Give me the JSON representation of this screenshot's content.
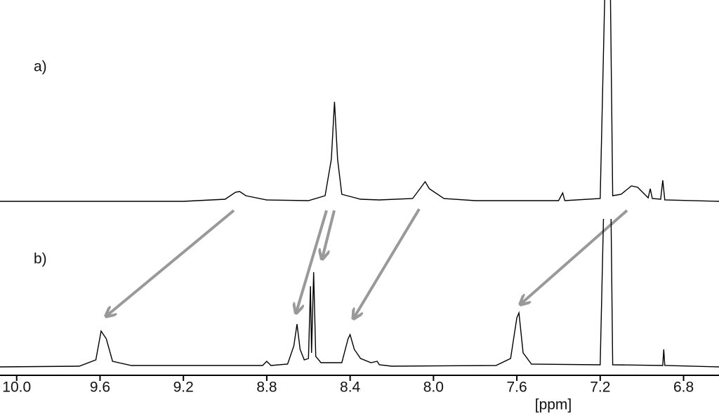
{
  "chart_data": {
    "type": "line",
    "xlabel": "[ppm]",
    "xlim": [
      10.08,
      6.63
    ],
    "ylim": [
      0,
      236
    ],
    "xticks": [
      {
        "value": 10.0,
        "label": "10.0"
      },
      9.6,
      9.2,
      8.8,
      8.4,
      {
        "value": 8.0,
        "label": "8.0"
      },
      7.6,
      7.2,
      6.8
    ],
    "series": [
      {
        "name": "a)",
        "color": "#000000",
        "x": [
          10.08,
          9.2,
          9.0,
          8.95,
          8.93,
          8.9,
          8.8,
          8.6,
          8.52,
          8.49,
          8.475,
          8.46,
          8.44,
          8.35,
          8.26,
          8.1,
          8.06,
          8.04,
          8.02,
          7.95,
          7.8,
          7.4,
          7.38,
          7.37,
          7.2,
          7.17,
          7.155,
          7.14,
          7.1,
          7.05,
          7.02,
          6.98,
          6.97,
          6.96,
          6.95,
          6.91,
          6.9,
          6.89,
          6.63
        ],
        "values": [
          0,
          0,
          3,
          13,
          14,
          8,
          2,
          1,
          8,
          60,
          142,
          60,
          10,
          3,
          2,
          4,
          20,
          28,
          18,
          4,
          1,
          1,
          12,
          1,
          4,
          400,
          400,
          8,
          10,
          22,
          20,
          8,
          5,
          18,
          4,
          3,
          30,
          2,
          0
        ]
      },
      {
        "name": "b)",
        "color": "#000000",
        "x": [
          10.08,
          9.7,
          9.62,
          9.595,
          9.57,
          9.54,
          9.45,
          8.82,
          8.8,
          8.78,
          8.7,
          8.67,
          8.655,
          8.64,
          8.62,
          8.6,
          8.59,
          8.585,
          8.575,
          8.565,
          8.54,
          8.44,
          8.41,
          8.4,
          8.38,
          8.35,
          8.3,
          8.27,
          8.26,
          8.2,
          7.7,
          7.63,
          7.6,
          7.59,
          7.57,
          7.53,
          7.2,
          7.17,
          7.155,
          7.14,
          6.9,
          6.895,
          6.89,
          6.63
        ],
        "values": [
          0,
          1,
          10,
          51,
          40,
          8,
          2,
          2,
          8,
          2,
          4,
          30,
          61,
          25,
          10,
          12,
          115,
          20,
          135,
          15,
          6,
          6,
          40,
          46,
          25,
          12,
          6,
          8,
          3,
          1,
          2,
          12,
          70,
          77,
          20,
          4,
          3,
          400,
          400,
          3,
          2,
          25,
          2,
          0
        ]
      }
    ]
  }
}
